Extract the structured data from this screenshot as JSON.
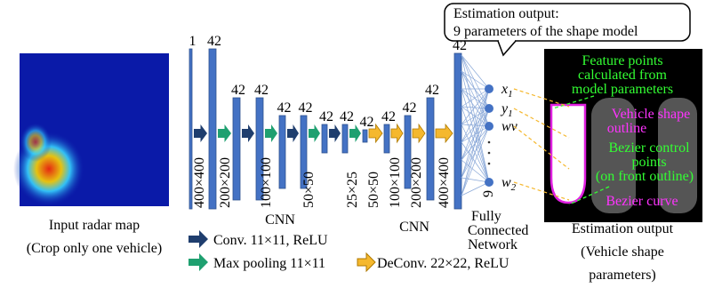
{
  "input": {
    "caption": [
      "Input radar map",
      "(Crop only one vehicle)"
    ]
  },
  "cnn": {
    "channels": [
      "1",
      "42",
      "42",
      "42",
      "42",
      "42",
      "42",
      "42",
      "42",
      "42",
      "42",
      "42",
      "42"
    ],
    "sizes": [
      "400×400",
      "200×200",
      "100×100",
      "50×50",
      "25×25",
      "50×50",
      "100×100",
      "200×200",
      "400×400"
    ],
    "labels": [
      "CNN",
      "CNN"
    ]
  },
  "fc": {
    "label": [
      "Fully",
      "Connected",
      "Network"
    ],
    "count": "9",
    "outputs": [
      {
        "base": "x",
        "sub": "1"
      },
      {
        "base": "y",
        "sub": "1"
      },
      {
        "base": "wv"
      },
      {
        "base": "w",
        "sub": "2"
      }
    ]
  },
  "legend": [
    "Conv. 11×11, ReLU",
    "Max pooling 11×11",
    "DeConv. 22×22, ReLU"
  ],
  "callout": [
    "Estimation output:",
    "9 parameters of the shape model"
  ],
  "output_image": {
    "feature": [
      "Feature points",
      "calculated from",
      "model parameters"
    ],
    "outline": [
      "Vehicle shape",
      "outline"
    ],
    "control": [
      "Bezier control",
      "points",
      "(on front outline)"
    ],
    "curve": "Bezier curve"
  },
  "output": {
    "caption": [
      "Estimation output",
      "(Vehicle shape",
      "parameters)"
    ]
  }
}
